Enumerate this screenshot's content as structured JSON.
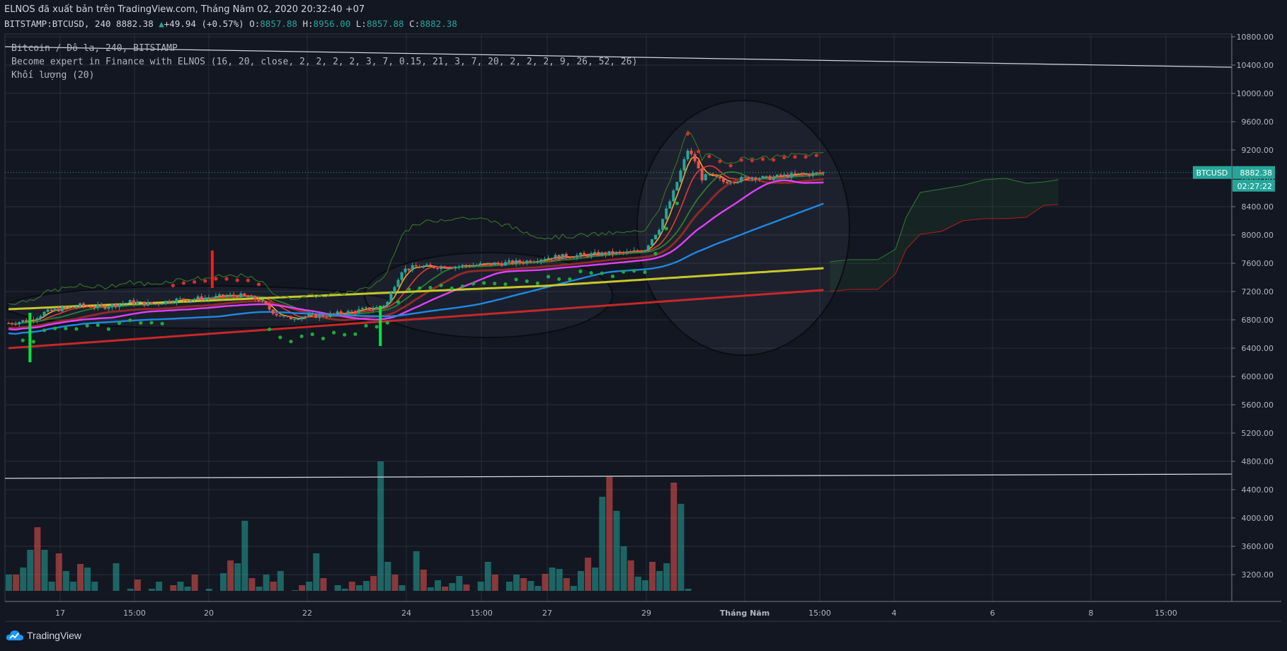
{
  "header": {
    "line1": "ELNOS đã xuất bản trên TradingView.com, Tháng Năm 02, 2020 20:32:40 +07",
    "symbol": "BITSTAMP:BTCUSD, 240 8882.38",
    "arrow": "▲",
    "change": "+49.94 (+0.57%)",
    "o_label": "O:",
    "o_value": "8857.88",
    "h_label": "H:",
    "h_value": "8956.00",
    "l_label": "L:",
    "l_value": "8857.88",
    "c_label": "C:",
    "c_value": "8882.38"
  },
  "legend": {
    "line1": "Bitcoin / Đô la, 240, BITSTAMP",
    "line2": "Become expert in Finance with ELNOS (16, 20, close, 2, 2, 2, 2, 3, 7, 0.15, 21, 3, 7, 20, 2, 2, 2, 9, 26, 52, 26)",
    "line3": "Khối lượng (20)"
  },
  "brand": {
    "logo": "tradingview-cloud-icon",
    "name": "TradingView"
  },
  "colors": {
    "bg": "#131722",
    "grid": "#2a2e39",
    "up": "#26a69a",
    "down": "#ef5350",
    "text": "#b2b5be"
  },
  "chart_data": {
    "type": "candlestick",
    "symbol_tag": "BTCUSD",
    "last_price": "8882.38",
    "countdown": "02:27:22",
    "y_ticks": [
      "10800.00",
      "10400.00",
      "10000.00",
      "9600.00",
      "9200.00",
      "8800.00",
      "8400.00",
      "8000.00",
      "7600.00",
      "7200.00",
      "6800.00",
      "6400.00",
      "6000.00",
      "5600.00",
      "5200.00",
      "4800.00",
      "4400.00",
      "4000.00",
      "3600.00",
      "3200.00"
    ],
    "y_tick_values": [
      10800,
      10400,
      10000,
      9600,
      9200,
      8800,
      8400,
      8000,
      7600,
      7200,
      6800,
      6400,
      6000,
      5600,
      5200,
      4800,
      4400,
      4000,
      3600,
      3200
    ],
    "x_ticks": [
      {
        "label": "17",
        "x": 85
      },
      {
        "label": "15:00",
        "x": 190
      },
      {
        "label": "20",
        "x": 295
      },
      {
        "label": "22",
        "x": 434
      },
      {
        "label": "24",
        "x": 574
      },
      {
        "label": "15:00",
        "x": 680
      },
      {
        "label": "27",
        "x": 773
      },
      {
        "label": "29",
        "x": 913
      },
      {
        "label": "Tháng Năm",
        "x": 1052,
        "bold": true
      },
      {
        "label": "15:00",
        "x": 1158
      },
      {
        "label": "4",
        "x": 1263
      },
      {
        "label": "6",
        "x": 1402
      },
      {
        "label": "8",
        "x": 1541
      },
      {
        "label": "15:00",
        "x": 1647
      }
    ],
    "price_path": [
      [
        0,
        6750
      ],
      [
        6,
        6800
      ],
      [
        10,
        6900
      ],
      [
        14,
        6950
      ],
      [
        20,
        7000
      ],
      [
        26,
        6980
      ],
      [
        34,
        7050
      ],
      [
        40,
        7020
      ],
      [
        46,
        7080
      ],
      [
        52,
        7100
      ],
      [
        58,
        7120
      ],
      [
        64,
        7150
      ],
      [
        70,
        7080
      ],
      [
        73,
        6950
      ],
      [
        75,
        6880
      ],
      [
        78,
        6820
      ],
      [
        82,
        6850
      ],
      [
        88,
        6860
      ],
      [
        94,
        6900
      ],
      [
        100,
        6950
      ],
      [
        104,
        6980
      ],
      [
        106,
        7050
      ],
      [
        108,
        7300
      ],
      [
        110,
        7500
      ],
      [
        114,
        7550
      ],
      [
        120,
        7550
      ],
      [
        126,
        7560
      ],
      [
        132,
        7580
      ],
      [
        138,
        7600
      ],
      [
        144,
        7620
      ],
      [
        150,
        7680
      ],
      [
        156,
        7700
      ],
      [
        162,
        7720
      ],
      [
        168,
        7740
      ],
      [
        174,
        7750
      ],
      [
        178,
        7800
      ],
      [
        180,
        7950
      ],
      [
        182,
        8100
      ],
      [
        184,
        8350
      ],
      [
        186,
        8600
      ],
      [
        188,
        8900
      ],
      [
        190,
        9200
      ],
      [
        192,
        9050
      ],
      [
        194,
        8800
      ],
      [
        196,
        8850
      ],
      [
        198,
        8800
      ],
      [
        200,
        8750
      ],
      [
        204,
        8780
      ],
      [
        208,
        8820
      ],
      [
        212,
        8800
      ],
      [
        216,
        8830
      ],
      [
        220,
        8850
      ],
      [
        224,
        8860
      ],
      [
        228,
        8882.38
      ]
    ],
    "volume": [
      [
        0,
        3200
      ],
      [
        2,
        3200
      ],
      [
        4,
        3300
      ],
      [
        6,
        3550
      ],
      [
        8,
        3870
      ],
      [
        10,
        3550
      ],
      [
        12,
        3100
      ],
      [
        14,
        3500
      ],
      [
        16,
        3250
      ],
      [
        18,
        3100
      ],
      [
        20,
        3350
      ],
      [
        22,
        3300
      ],
      [
        24,
        3100
      ],
      [
        26,
        2950
      ],
      [
        30,
        3360
      ],
      [
        34,
        3000
      ],
      [
        36,
        3130
      ],
      [
        40,
        3000
      ],
      [
        42,
        3100
      ],
      [
        46,
        3050
      ],
      [
        48,
        3100
      ],
      [
        50,
        3030
      ],
      [
        52,
        3200
      ],
      [
        56,
        3000
      ],
      [
        60,
        3220
      ],
      [
        62,
        3400
      ],
      [
        64,
        3360
      ],
      [
        66,
        3960
      ],
      [
        68,
        3150
      ],
      [
        70,
        3030
      ],
      [
        72,
        3200
      ],
      [
        74,
        3100
      ],
      [
        76,
        3250
      ],
      [
        80,
        2980
      ],
      [
        82,
        3050
      ],
      [
        84,
        3100
      ],
      [
        86,
        3500
      ],
      [
        88,
        3150
      ],
      [
        92,
        3050
      ],
      [
        94,
        3000
      ],
      [
        96,
        3100
      ],
      [
        98,
        3050
      ],
      [
        100,
        3110
      ],
      [
        102,
        3180
      ],
      [
        104,
        4800
      ],
      [
        106,
        3380
      ],
      [
        108,
        3200
      ],
      [
        110,
        3050
      ],
      [
        114,
        3530
      ],
      [
        116,
        3270
      ],
      [
        118,
        3020
      ],
      [
        120,
        3120
      ],
      [
        122,
        3030
      ],
      [
        124,
        3080
      ],
      [
        126,
        3180
      ],
      [
        128,
        3060
      ],
      [
        132,
        3100
      ],
      [
        134,
        3380
      ],
      [
        136,
        3200
      ],
      [
        140,
        3100
      ],
      [
        142,
        3200
      ],
      [
        144,
        3150
      ],
      [
        146,
        3110
      ],
      [
        148,
        3040
      ],
      [
        150,
        3210
      ],
      [
        152,
        3300
      ],
      [
        154,
        3280
      ],
      [
        156,
        3150
      ],
      [
        158,
        3040
      ],
      [
        160,
        3250
      ],
      [
        162,
        3440
      ],
      [
        164,
        3300
      ],
      [
        166,
        4300
      ],
      [
        168,
        4580
      ],
      [
        170,
        4100
      ],
      [
        172,
        3600
      ],
      [
        174,
        3400
      ],
      [
        176,
        3170
      ],
      [
        178,
        3120
      ],
      [
        180,
        3380
      ],
      [
        182,
        3250
      ],
      [
        184,
        3360
      ],
      [
        186,
        4500
      ],
      [
        188,
        4200
      ],
      [
        190,
        3000
      ]
    ]
  }
}
